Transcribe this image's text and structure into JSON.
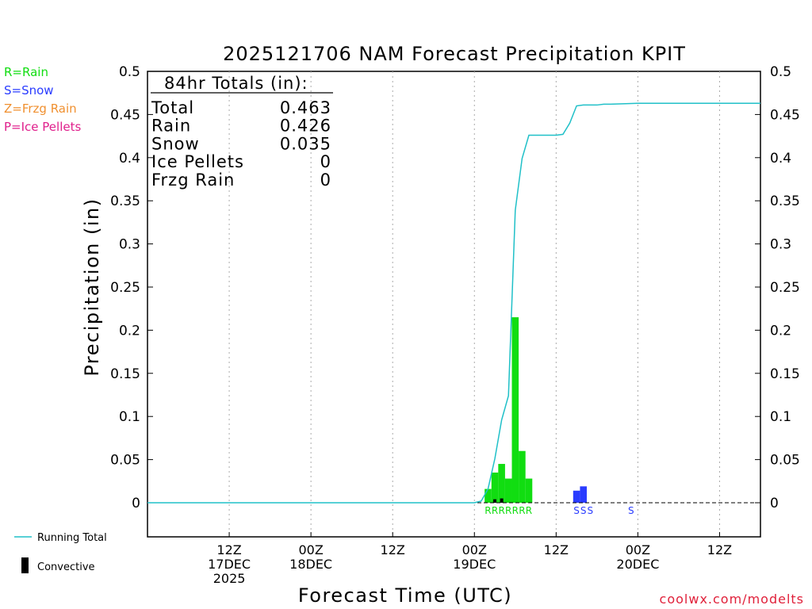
{
  "chart_data": {
    "type": "bar",
    "title": "2025121706 NAM Forecast Precipitation KPIT",
    "xlabel": "Forecast Time (UTC)",
    "ylabel": "Precipitation (in)",
    "ylim": [
      -0.04,
      0.5
    ],
    "yticks": [
      "0",
      "0.05",
      "0.1",
      "0.15",
      "0.2",
      "0.25",
      "0.3",
      "0.35",
      "0.4",
      "0.45",
      "0.5"
    ],
    "xlim_hours": [
      -6,
      84
    ],
    "xticks": [
      {
        "hour": 6,
        "line1": "12Z",
        "line2": "17DEC",
        "line3": "2025"
      },
      {
        "hour": 18,
        "line1": "00Z",
        "line2": "18DEC",
        "line3": ""
      },
      {
        "hour": 30,
        "line1": "12Z",
        "line2": "",
        "line3": ""
      },
      {
        "hour": 42,
        "line1": "00Z",
        "line2": "19DEC",
        "line3": ""
      },
      {
        "hour": 54,
        "line1": "12Z",
        "line2": "",
        "line3": ""
      },
      {
        "hour": 66,
        "line1": "00Z",
        "line2": "20DEC",
        "line3": ""
      },
      {
        "hour": 78,
        "line1": "12Z",
        "line2": "",
        "line3": ""
      }
    ],
    "bar_width_hours": 1,
    "series": [
      {
        "name": "Rain",
        "color": "#11dd11",
        "hours": [
          44,
          45,
          46,
          47,
          48,
          49,
          50
        ],
        "values": [
          0.016,
          0.035,
          0.045,
          0.028,
          0.215,
          0.06,
          0.028
        ]
      },
      {
        "name": "Snow",
        "color": "#2a3cff",
        "hours": [
          57,
          58
        ],
        "values": [
          0.014,
          0.019
        ]
      },
      {
        "name": "Convective",
        "color": "#000000",
        "hours": [
          45,
          46
        ],
        "values": [
          0.004,
          0.005
        ]
      }
    ],
    "running_total": {
      "name": "Running Total",
      "color": "#20c0c8",
      "hours": [
        -6,
        42,
        43,
        44,
        45,
        46,
        47,
        48,
        49,
        50,
        51,
        52,
        53,
        54,
        55,
        56,
        57,
        58,
        59,
        60,
        61,
        62,
        66,
        84
      ],
      "values": [
        0,
        0,
        0.002,
        0.016,
        0.051,
        0.096,
        0.124,
        0.339,
        0.399,
        0.426,
        0.426,
        0.426,
        0.426,
        0.426,
        0.427,
        0.44,
        0.46,
        0.461,
        0.461,
        0.461,
        0.462,
        0.462,
        0.463,
        0.463
      ]
    },
    "type_markers": [
      {
        "hour": 44,
        "letter": "R",
        "color": "#11dd11"
      },
      {
        "hour": 45,
        "letter": "R",
        "color": "#11dd11"
      },
      {
        "hour": 46,
        "letter": "R",
        "color": "#11dd11"
      },
      {
        "hour": 47,
        "letter": "R",
        "color": "#11dd11"
      },
      {
        "hour": 48,
        "letter": "R",
        "color": "#11dd11"
      },
      {
        "hour": 49,
        "letter": "R",
        "color": "#11dd11"
      },
      {
        "hour": 50,
        "letter": "R",
        "color": "#11dd11"
      },
      {
        "hour": 57,
        "letter": "S",
        "color": "#2a3cff"
      },
      {
        "hour": 58,
        "letter": "S",
        "color": "#2a3cff"
      },
      {
        "hour": 59,
        "letter": "S",
        "color": "#2a3cff"
      },
      {
        "hour": 65,
        "letter": "S",
        "color": "#2a3cff"
      }
    ],
    "legend_types": [
      {
        "text": "R=Rain",
        "color": "#11dd11"
      },
      {
        "text": "S=Snow",
        "color": "#2a3cff"
      },
      {
        "text": "Z=Frzg Rain",
        "color": "#f09030"
      },
      {
        "text": "P=Ice Pellets",
        "color": "#e0208c"
      }
    ],
    "totals": {
      "header": "84hr Totals (in):",
      "rows": [
        {
          "label": "Total",
          "value": "0.463"
        },
        {
          "label": "Rain",
          "value": "0.426"
        },
        {
          "label": "Snow",
          "value": "0.035"
        },
        {
          "label": "Ice Pellets",
          "value": "0"
        },
        {
          "label": "Frzg Rain",
          "value": "0"
        }
      ]
    },
    "legend_bottom": {
      "running_total": "Running Total",
      "convective": "Convective"
    },
    "credit": "coolwx.com/modelts",
    "credit_color": "#e0203a"
  }
}
